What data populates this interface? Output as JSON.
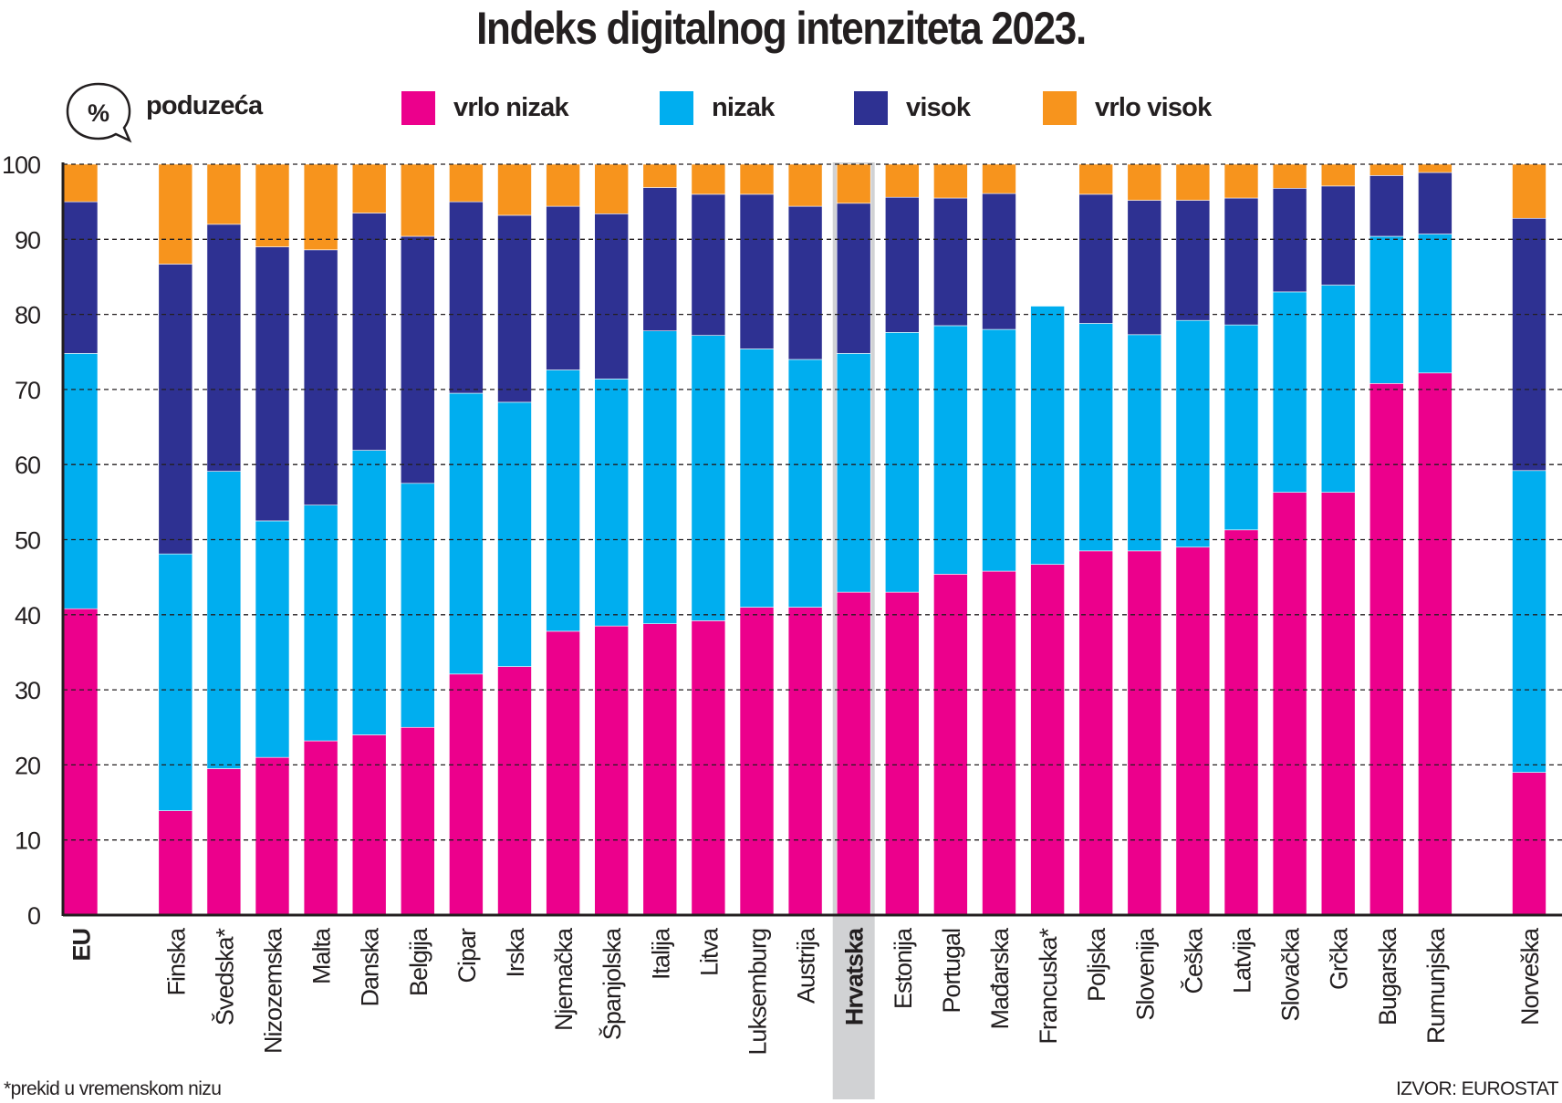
{
  "chart_data": {
    "type": "bar",
    "stacked": true,
    "title": "Indeks digitalnog intenziteta 2023.",
    "unit_label": "poduzeća",
    "unit_icon": "percent-speech-bubble-icon",
    "ylim": [
      0,
      100
    ],
    "yticks": [
      0,
      10,
      20,
      30,
      40,
      50,
      60,
      70,
      80,
      90,
      100
    ],
    "grid": true,
    "legend_position": "top",
    "highlight": "Hrvatska",
    "bold_categories": [
      "EU",
      "Hrvatska"
    ],
    "categories": [
      "EU",
      "Finska",
      "Švedska*",
      "Nizozemska",
      "Malta",
      "Danska",
      "Belgija",
      "Cipar",
      "Irska",
      "Njemačka",
      "Španjolska",
      "Italija",
      "Litva",
      "Luksemburg",
      "Austrija",
      "Hrvatska",
      "Estonija",
      "Portugal",
      "Mađarska",
      "Francuska*",
      "Poljska",
      "Slovenija",
      "Češka",
      "Latvija",
      "Slovačka",
      "Grčka",
      "Bugarska",
      "Rumunjska",
      "Norveška"
    ],
    "series": [
      {
        "name": "vrlo nizak",
        "color": "#ec008c",
        "values": [
          40.8,
          13.9,
          19.5,
          21.0,
          23.2,
          24.0,
          25.0,
          32.1,
          33.1,
          37.8,
          38.5,
          38.8,
          39.2,
          41.0,
          41.0,
          43.0,
          43.0,
          45.4,
          45.8,
          46.7,
          48.5,
          48.5,
          49.0,
          51.3,
          56.3,
          56.3,
          70.8,
          72.2,
          19.0
        ]
      },
      {
        "name": "nizak",
        "color": "#00aeef",
        "values": [
          34.0,
          34.2,
          39.6,
          31.5,
          31.4,
          37.9,
          32.5,
          37.4,
          35.2,
          34.8,
          32.9,
          39.0,
          38.0,
          34.4,
          33.0,
          31.8,
          34.6,
          33.1,
          32.2,
          34.4,
          30.3,
          28.8,
          30.2,
          27.3,
          26.7,
          27.6,
          19.6,
          18.5,
          40.2
        ]
      },
      {
        "name": "visok",
        "color": "#2e3192",
        "values": [
          20.2,
          38.6,
          32.9,
          36.5,
          34.0,
          31.6,
          32.9,
          25.5,
          24.9,
          21.8,
          22.0,
          19.1,
          18.8,
          20.6,
          20.4,
          20.0,
          18.0,
          17.0,
          18.1,
          0,
          17.2,
          17.9,
          16.0,
          16.9,
          13.8,
          13.2,
          8.1,
          8.2,
          33.6
        ]
      },
      {
        "name": "vrlo visok",
        "color": "#f7941d",
        "values": [
          5.0,
          13.3,
          8.0,
          11.0,
          11.4,
          6.5,
          9.6,
          5.0,
          6.8,
          5.6,
          6.6,
          3.1,
          4.0,
          4.0,
          5.6,
          5.2,
          4.4,
          4.5,
          3.9,
          0,
          4.0,
          4.8,
          4.8,
          4.5,
          3.2,
          2.9,
          1.5,
          1.1,
          7.2
        ]
      }
    ],
    "footnote": "*prekid u vremenskom nizu",
    "source": "IZVOR: EUROSTAT",
    "highlight_color": "#d1d2d4"
  }
}
